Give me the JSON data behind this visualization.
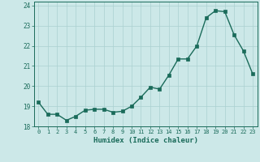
{
  "x": [
    0,
    1,
    2,
    3,
    4,
    5,
    6,
    7,
    8,
    9,
    10,
    11,
    12,
    13,
    14,
    15,
    16,
    17,
    18,
    19,
    20,
    21,
    22,
    23
  ],
  "y": [
    19.2,
    18.6,
    18.6,
    18.3,
    18.5,
    18.8,
    18.85,
    18.85,
    18.7,
    18.75,
    19.0,
    19.45,
    19.95,
    19.85,
    20.55,
    21.35,
    21.35,
    22.0,
    23.4,
    23.75,
    23.7,
    22.55,
    21.75,
    20.6
  ],
  "xlabel": "Humidex (Indice chaleur)",
  "xlim": [
    -0.5,
    23.5
  ],
  "ylim": [
    18.0,
    24.2
  ],
  "yticks": [
    18,
    19,
    20,
    21,
    22,
    23,
    24
  ],
  "xticks": [
    0,
    1,
    2,
    3,
    4,
    5,
    6,
    7,
    8,
    9,
    10,
    11,
    12,
    13,
    14,
    15,
    16,
    17,
    18,
    19,
    20,
    21,
    22,
    23
  ],
  "line_color": "#1a6b5a",
  "marker_color": "#1a6b5a",
  "bg_color": "#cce8e8",
  "grid_color": "#aad0d0",
  "axis_color": "#1a6b5a",
  "tick_label_color": "#1a6b5a",
  "xlabel_color": "#1a6b5a",
  "markersize": 2.2,
  "linewidth": 1.0
}
